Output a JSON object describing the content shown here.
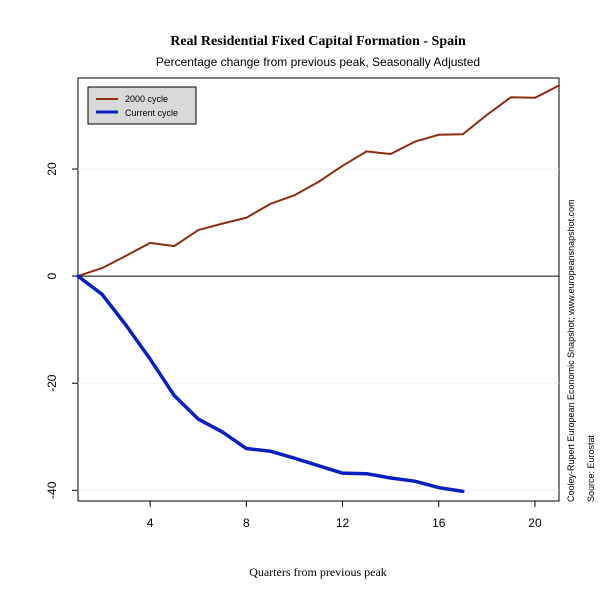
{
  "chart_data": {
    "type": "line",
    "title": "Real Residential Fixed Capital Formation - Spain",
    "subtitle": "Percentage change from previous peak, Seasonally Adjusted",
    "xlabel": "Quarters from previous peak",
    "ylabel": "",
    "xlim": [
      1,
      21
    ],
    "ylim": [
      -42,
      37
    ],
    "x_ticks": [
      4,
      8,
      12,
      16,
      20
    ],
    "y_ticks": [
      20,
      0,
      -20,
      -40
    ],
    "grid": true,
    "legend_position": "top-left",
    "series": [
      {
        "name": "2000 cycle",
        "color": "#8B2E0F",
        "x": [
          1,
          2,
          3,
          4,
          5,
          6,
          7,
          8,
          9,
          10,
          11,
          12,
          13,
          14,
          15,
          16,
          17,
          18,
          19,
          20,
          21
        ],
        "values": [
          0.0,
          1.5,
          3.8,
          6.2,
          5.6,
          8.6,
          9.8,
          10.9,
          13.5,
          15.1,
          17.6,
          20.6,
          23.3,
          22.8,
          25.1,
          26.4,
          26.5,
          30.1,
          33.4,
          33.3,
          35.6
        ]
      },
      {
        "name": "Current cycle",
        "color": "#0A1FBF",
        "x": [
          1,
          2,
          3,
          4,
          5,
          6,
          7,
          8,
          9,
          10,
          11,
          12,
          13,
          14,
          15,
          16,
          17
        ],
        "values": [
          0.0,
          -3.4,
          -9.2,
          -15.5,
          -22.3,
          -26.7,
          -29.1,
          -32.2,
          -32.7,
          -34.0,
          -35.4,
          -36.8,
          -36.9,
          -37.7,
          -38.3,
          -39.5,
          -40.2
        ]
      }
    ]
  },
  "side_notes": {
    "credit": "Cooley-Rupert European Economic Snapshot; www.europeansnapshot.com",
    "source": "Source: Eurostat"
  }
}
